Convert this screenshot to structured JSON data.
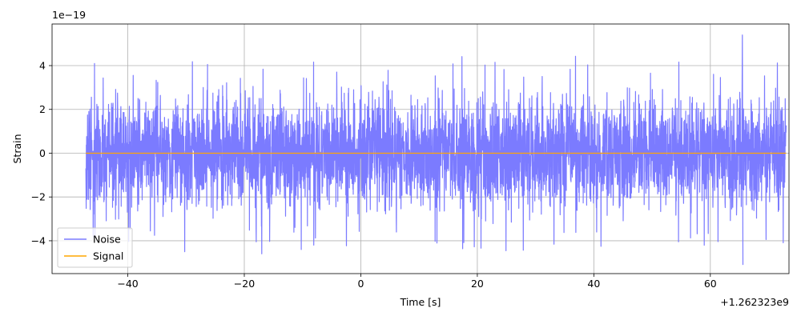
{
  "chart_data": {
    "type": "line",
    "title": "",
    "xlabel": "Time [s]",
    "ylabel": "Strain",
    "x_offset_label": "+1.262323e9",
    "y_multiplier_label": "1e−19",
    "xlim": [
      -53,
      73.5
    ],
    "ylim": [
      -5.5,
      5.9
    ],
    "xticks": [
      -40,
      -20,
      0,
      20,
      40,
      60
    ],
    "xtick_labels": [
      "−40",
      "−20",
      "0",
      "20",
      "40",
      "60"
    ],
    "yticks": [
      -4,
      -2,
      0,
      2,
      4
    ],
    "ytick_labels": [
      "−4",
      "−2",
      "0",
      "2",
      "4"
    ],
    "grid": true,
    "legend_position": "lower-left",
    "series": [
      {
        "name": "Noise",
        "color": "#7b7bff",
        "kind": "noise",
        "x_range": [
          -47.2,
          73
        ],
        "typical_amplitude": 2.2,
        "max_peak": 5.4,
        "min_trough": -5.1
      },
      {
        "name": "Signal",
        "color": "#ffa500",
        "kind": "line",
        "x": [
          -47.2,
          73
        ],
        "y": [
          0,
          0
        ]
      }
    ]
  }
}
